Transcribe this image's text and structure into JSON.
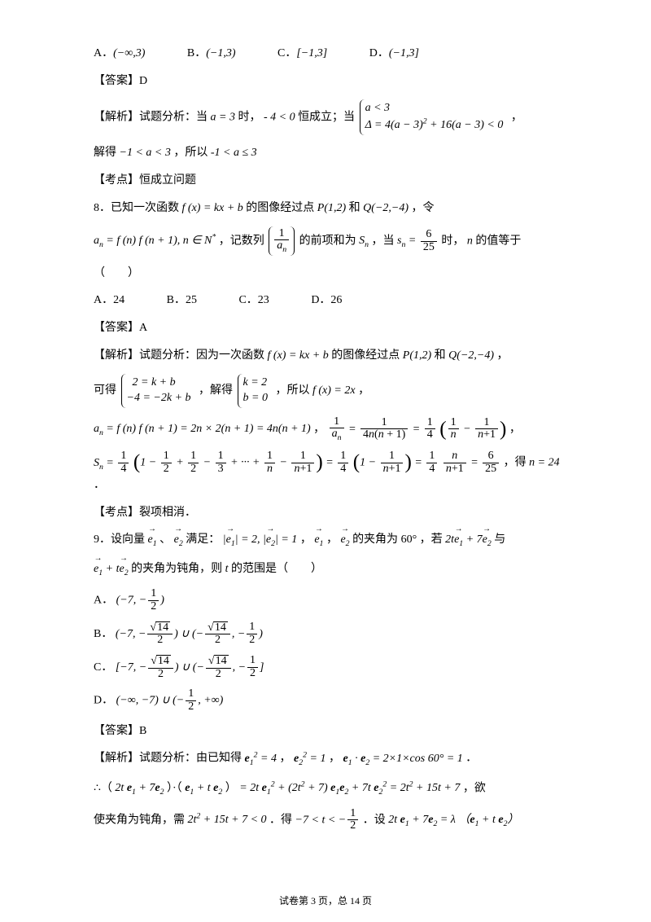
{
  "doc": {
    "background_color": "#ffffff",
    "text_color": "#000000",
    "font_family": "SimSun",
    "math_font": "Times New Roman",
    "body_fontsize_pt": 10.5,
    "footer_fontsize_pt": 9
  },
  "q7_options": {
    "A_label": "A．",
    "A_val": "(−∞,3)",
    "B_label": "B．",
    "B_val": "(−1,3)",
    "C_label": "C．",
    "C_val": "[−1,3]",
    "D_label": "D．",
    "D_val": "(−1,3]"
  },
  "q7_answer_label": "【答案】D",
  "q7_analysis_prefix": "【解析】试题分析：当",
  "q7_analysis_mid1": "时， ",
  "q7_analysis_mid2": "恒成立；当",
  "q7_case_a": "a < 3",
  "q7_case_b": "Δ = 4(a − 3)² + 16(a − 3) < 0",
  "q7_analysis_tail_comma": "，",
  "q7_line2a": "解得",
  "q7_line2b": "，所以",
  "q7_kaodian": "【考点】恒成立问题",
  "q8_stem_prefix": "8．已知一次函数",
  "q8_stem_mid": "的图像经过点",
  "q8_stem_and": "和",
  "q8_stem_tail": "，令",
  "q8_line2_a": "，记数列",
  "q8_line2_b": "的前项和为",
  "q8_line2_c": "，当",
  "q8_line2_d": "时，",
  "q8_line2_e": "的值等于",
  "q8_paren": "（　　）",
  "q8_opts": {
    "A": "A．24",
    "B": "B．25",
    "C": "C．23",
    "D": "D．26"
  },
  "q8_answer_label": "【答案】A",
  "q8_ana_prefix": "【解析】试题分析：因为一次函数",
  "q8_ana_mid": "的图像经过点",
  "q8_ana_and": "和",
  "q8_ana_tail": "，",
  "q8_line_kede": "可得",
  "q8_jiede": "，解得",
  "q8_suoyi": "，所以",
  "q8_comma": "，",
  "q8_de": "，得",
  "q8_period": "．",
  "q8_kaodian": "【考点】裂项相消．",
  "q9_prefix": "9．设向量",
  "q9_mid1": "、",
  "q9_mid2": "满足：",
  "q9_mid3": "，",
  "q9_mid4": "，",
  "q9_mid5": "，",
  "q9_mid6": "的夹角为",
  "q9_deg": "60°",
  "q9_mid7": "，若",
  "q9_mid8": "与",
  "q9_line2a": "的夹角为钝角，则",
  "q9_line2b": "的范围是（　　）",
  "q9_optA_label": "A．",
  "q9_optB_label": "B．",
  "q9_optC_label": "C．",
  "q9_optD_label": "D．",
  "q9_answer": "【答案】B",
  "q9_ana_prefix": "【解析】试题分析：由已知得",
  "q9_ana_comma": "，",
  "q9_ana_period": "．",
  "q9_line_therefore": "∴（",
  "q9_line_dot": "）·（",
  "q9_line_eq": "）",
  "q9_line_yu": "，欲",
  "q9_last_a": "使夹角为钝角，需",
  "q9_last_b": "．得",
  "q9_last_c": "．设",
  "footer": "试卷第 3 页，总 14 页"
}
